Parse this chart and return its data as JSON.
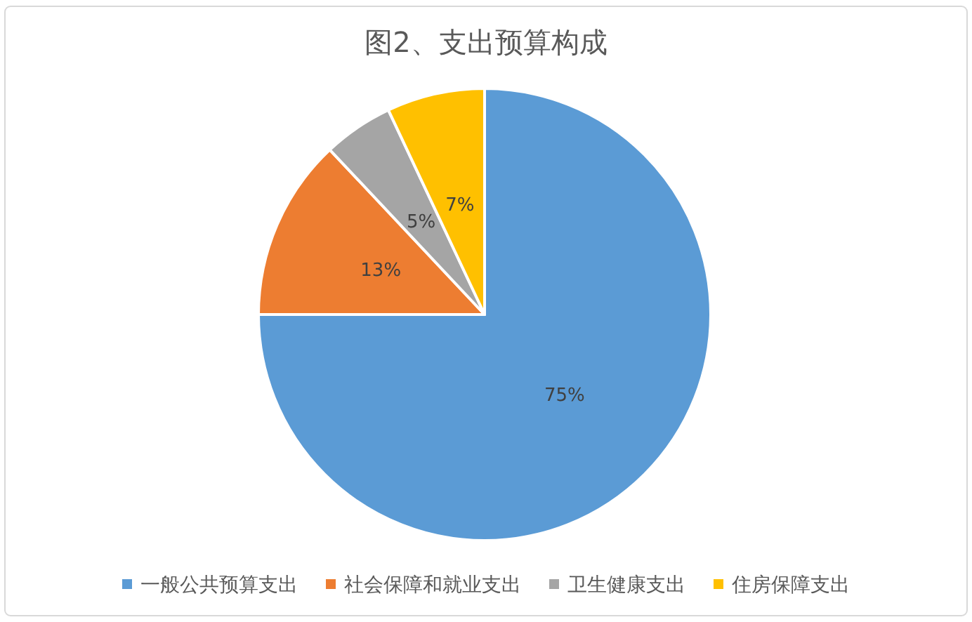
{
  "chart_data": {
    "type": "pie",
    "title": "图2、支出预算构成",
    "categories": [
      "一般公共预算支出",
      "社会保障和就业支出",
      "卫生健康支出",
      "住房保障支出"
    ],
    "values": [
      75,
      13,
      5,
      7
    ],
    "value_labels": [
      "75%",
      "13%",
      "5%",
      "7%"
    ],
    "colors": [
      "#5b9bd5",
      "#ed7d31",
      "#a5a5a5",
      "#ffc000"
    ],
    "legend": "bottom"
  }
}
